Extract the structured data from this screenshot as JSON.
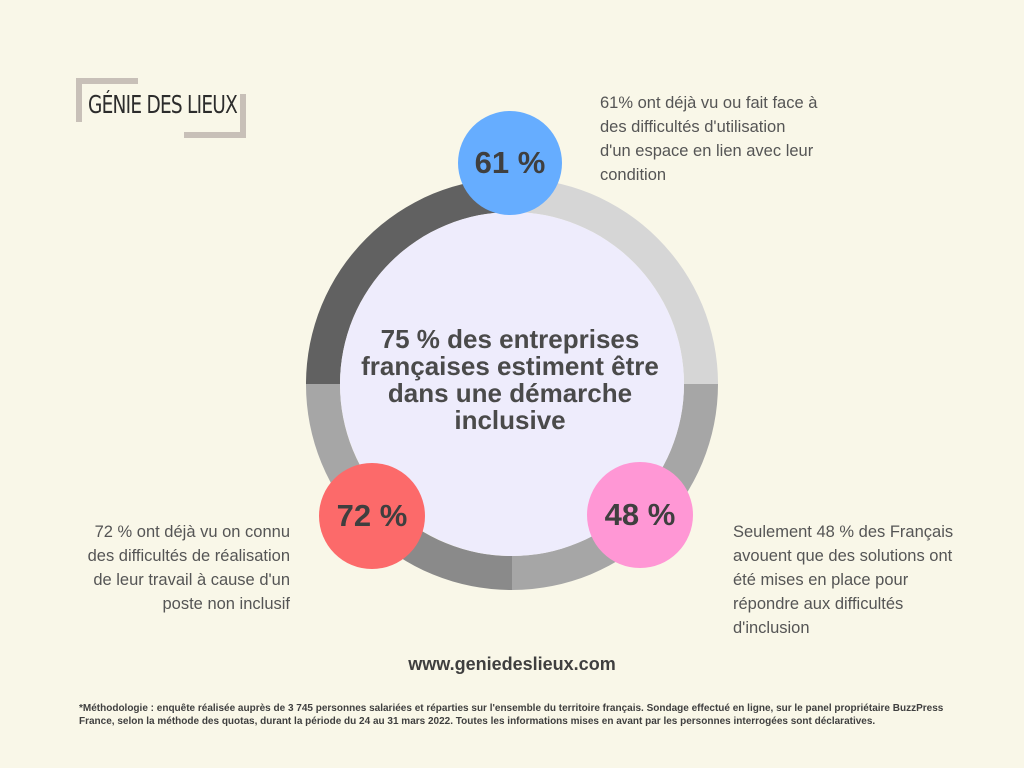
{
  "logo": {
    "text": "GÉNIE DES LIEUX"
  },
  "center": {
    "text": "75 % des entreprises françaises estiment être dans une démarche inclusive"
  },
  "stats": [
    {
      "value": "61 %",
      "color": "#66adff",
      "caption": "61% ont déjà vu ou fait face à des difficultés d'utilisation d'un espace en lien avec leur condition"
    },
    {
      "value": "72 %",
      "color": "#fc6a6a",
      "caption": "72 % ont déjà vu on connu des difficultés de réalisation de leur travail à cause d'un poste non inclusif"
    },
    {
      "value": "48 %",
      "color": "#ff97d5",
      "caption": "Seulement 48 % des Français avouent que des solutions ont été mises en place pour répondre aux difficultés d'inclusion"
    }
  ],
  "website": "www.geniedeslieux.com",
  "methodology": "*Méthodologie : enquête réalisée auprès de 3 745 personnes salariées et réparties sur l'ensemble du territoire français. Sondage effectué en ligne, sur le panel propriétaire BuzzPress France, selon la méthode des quotas, durant la période du 24 au 31 mars 2022. Toutes les informations mises en avant par les personnes interrogées sont déclaratives.",
  "colors": {
    "background": "#f9f7e8",
    "inner_circle": "#eeecfc",
    "ring_dark": "#616161",
    "ring_light": "#d6d6d6",
    "ring_mid": "#a6a6a6",
    "ring_mid2": "#8a8a8a"
  }
}
